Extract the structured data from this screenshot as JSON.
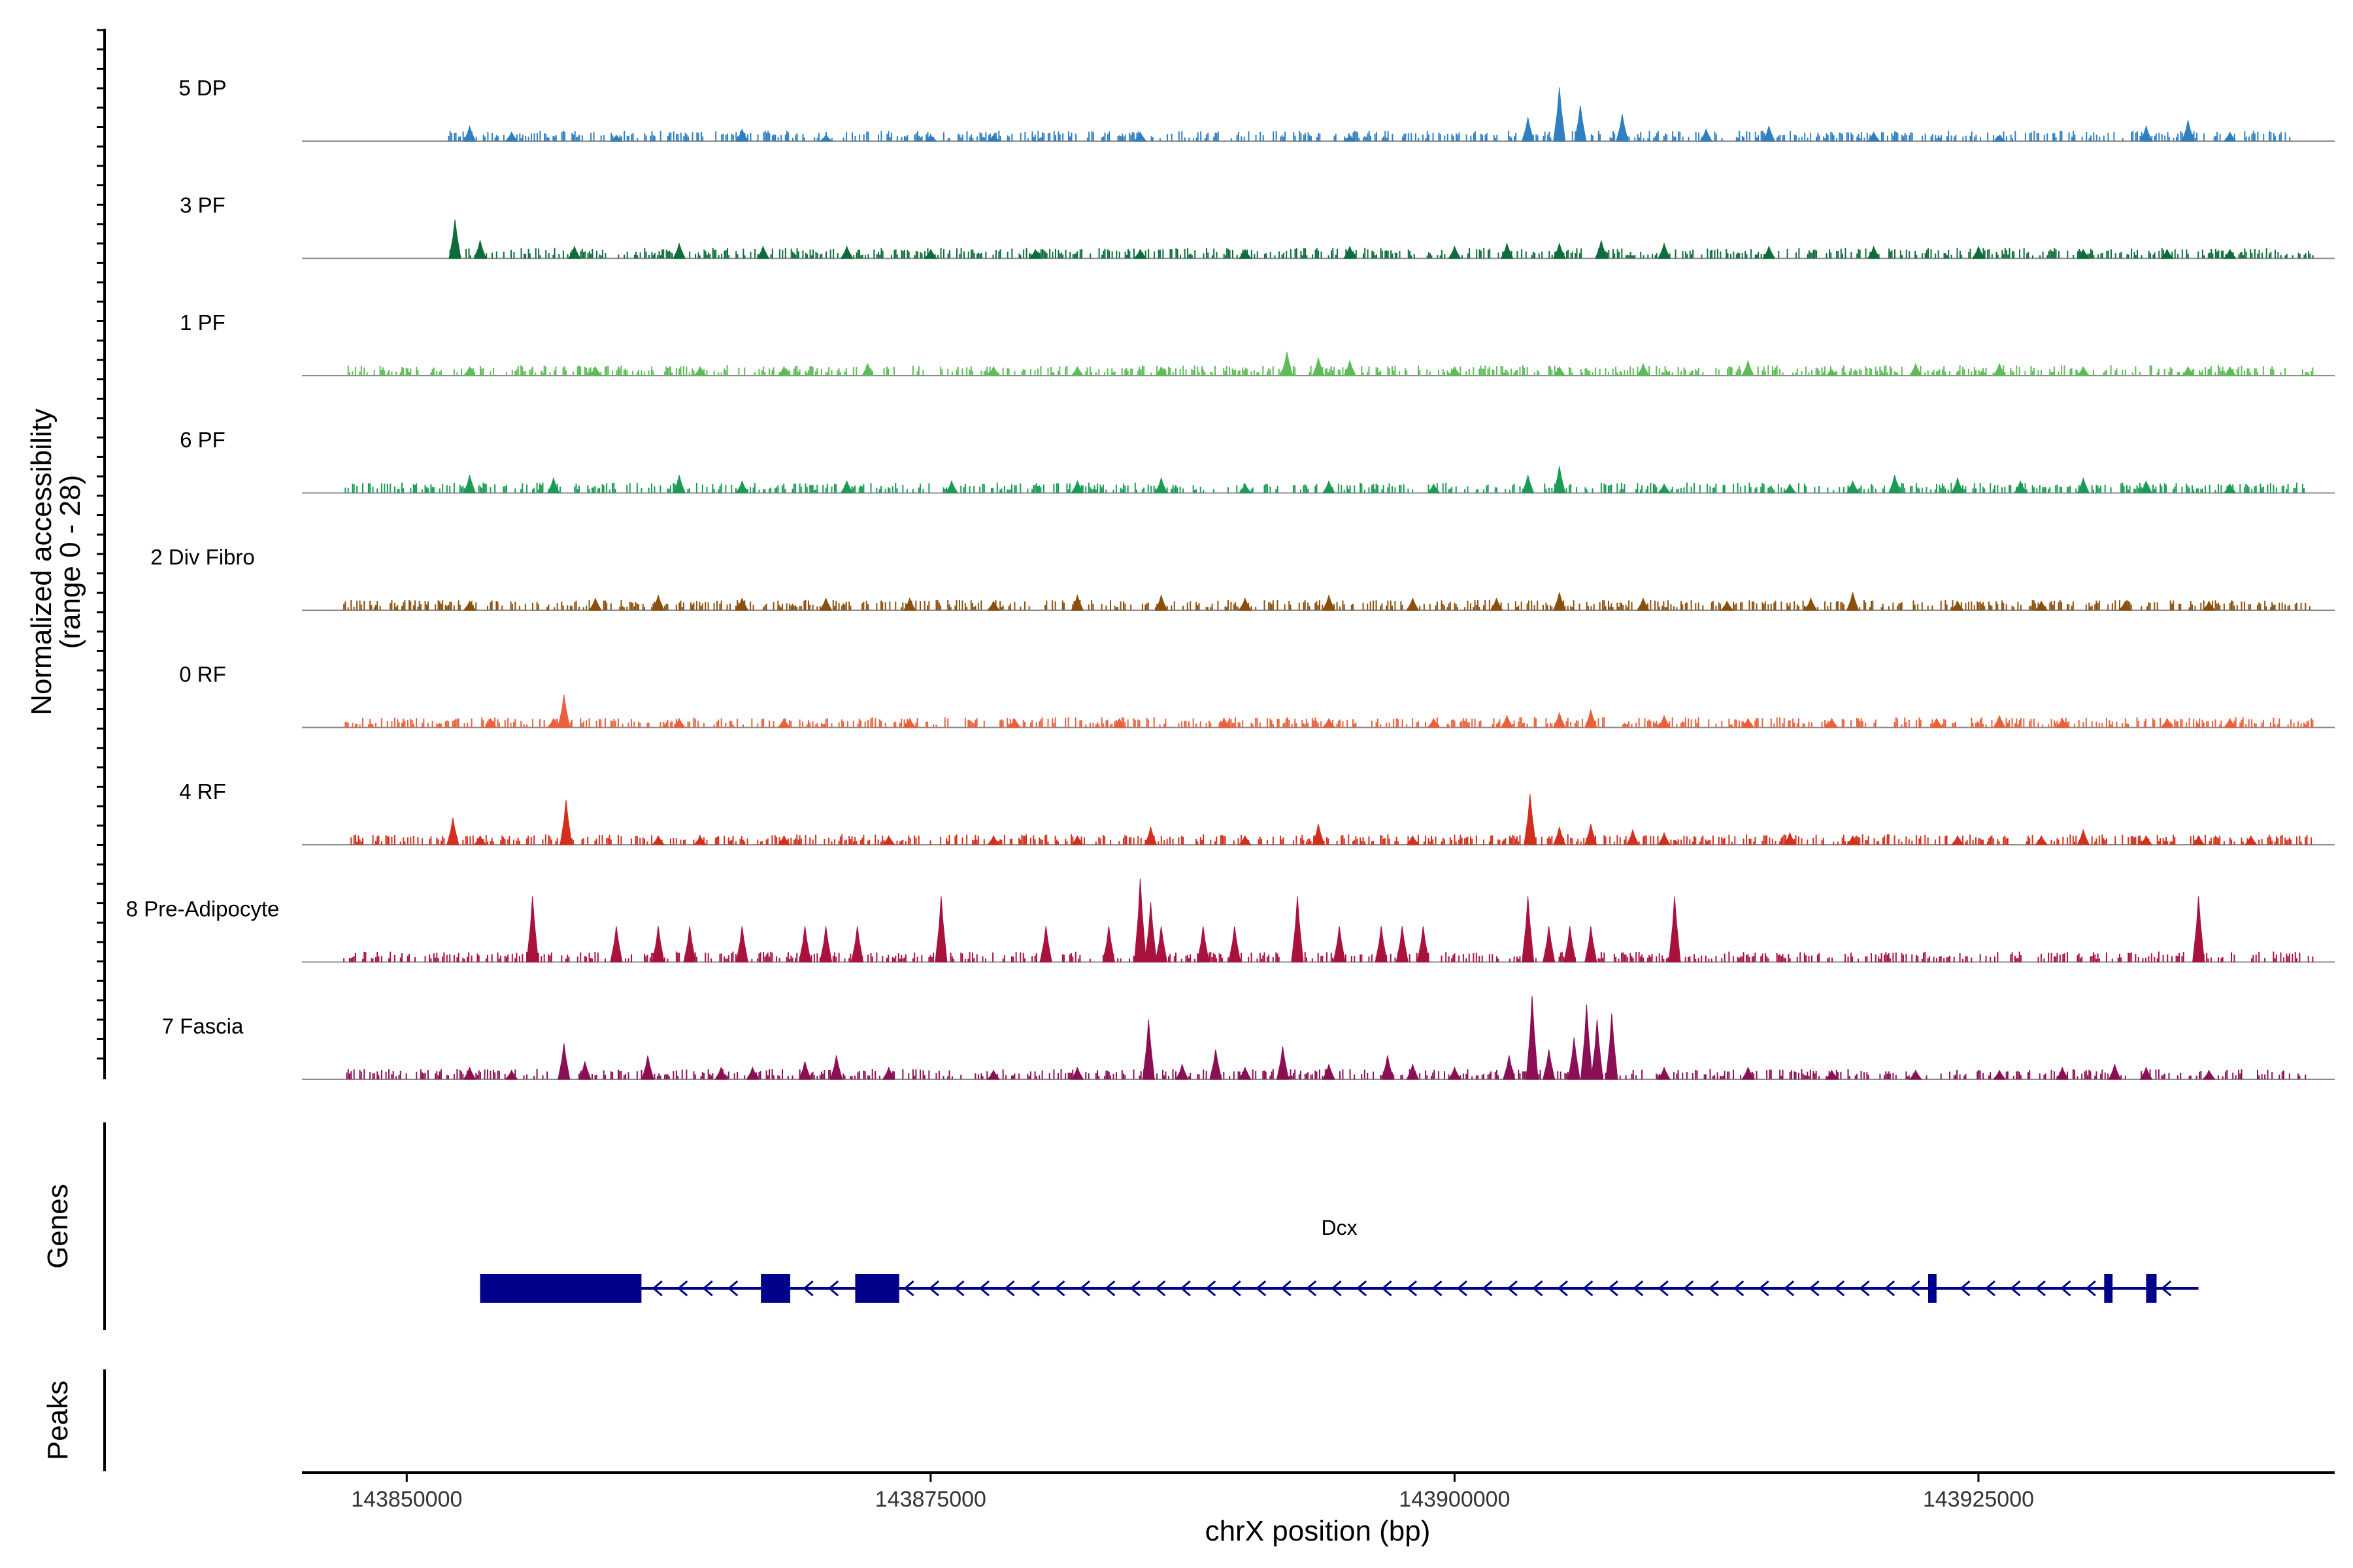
{
  "chart_data": {
    "type": "area",
    "title": "",
    "ylabel": "Normalized accessibility",
    "ylabel_sub": "(range 0 - 28)",
    "ylim": [
      0,
      28
    ],
    "xlabel": "chrX position (bp)",
    "xlim": [
      143845000,
      143942000
    ],
    "xticks": [
      143850000,
      143875000,
      143900000,
      143925000
    ],
    "xtick_labels": [
      "143850000",
      "143875000",
      "143900000",
      "143925000"
    ],
    "series": [
      {
        "name": "5 DP",
        "color": "#2F7FC1",
        "extent": [
          143852000,
          143940000
        ],
        "peaks": [
          [
            143853000,
            5
          ],
          [
            143855000,
            3
          ],
          [
            143860000,
            2
          ],
          [
            143866000,
            4
          ],
          [
            143870000,
            2
          ],
          [
            143875000,
            2
          ],
          [
            143878000,
            2
          ],
          [
            143885000,
            3
          ],
          [
            143895000,
            2
          ],
          [
            143903500,
            8
          ],
          [
            143905000,
            18
          ],
          [
            143906000,
            12
          ],
          [
            143908000,
            9
          ],
          [
            143912000,
            4
          ],
          [
            143915000,
            5
          ],
          [
            143920000,
            3
          ],
          [
            143926000,
            2
          ],
          [
            143933000,
            5
          ],
          [
            143935000,
            7
          ],
          [
            143937000,
            3
          ]
        ]
      },
      {
        "name": "3 PF",
        "color": "#0E6B3A",
        "extent": [
          143852000,
          143941000
        ],
        "peaks": [
          [
            143852300,
            13
          ],
          [
            143853500,
            6
          ],
          [
            143858000,
            4
          ],
          [
            143863000,
            5
          ],
          [
            143867000,
            4
          ],
          [
            143871000,
            4
          ],
          [
            143875000,
            3
          ],
          [
            143880000,
            3
          ],
          [
            143885000,
            3
          ],
          [
            143890000,
            3
          ],
          [
            143895000,
            4
          ],
          [
            143900000,
            4
          ],
          [
            143902500,
            5
          ],
          [
            143905000,
            5
          ],
          [
            143907000,
            6
          ],
          [
            143910000,
            5
          ],
          [
            143915000,
            4
          ],
          [
            143920000,
            4
          ],
          [
            143925000,
            4
          ],
          [
            143930000,
            3
          ],
          [
            143934000,
            3
          ],
          [
            143937000,
            3
          ]
        ]
      },
      {
        "name": "1 PF",
        "color": "#5DBB58",
        "extent": [
          143845000,
          143941000
        ],
        "peaks": [
          [
            143853000,
            3
          ],
          [
            143859000,
            3
          ],
          [
            143864000,
            3
          ],
          [
            143868000,
            3
          ],
          [
            143872000,
            4
          ],
          [
            143878000,
            3
          ],
          [
            143882000,
            3
          ],
          [
            143886000,
            3
          ],
          [
            143892000,
            8
          ],
          [
            143893500,
            6
          ],
          [
            143895000,
            5
          ],
          [
            143900000,
            3
          ],
          [
            143905000,
            3
          ],
          [
            143909000,
            4
          ],
          [
            143914000,
            5
          ],
          [
            143918000,
            2
          ],
          [
            143922000,
            4
          ],
          [
            143926000,
            4
          ],
          [
            143930000,
            3
          ],
          [
            143935000,
            3
          ],
          [
            143937000,
            3
          ]
        ]
      },
      {
        "name": "6 PF",
        "color": "#1B9B55",
        "extent": [
          143845000,
          143941000
        ],
        "peaks": [
          [
            143853000,
            6
          ],
          [
            143857000,
            5
          ],
          [
            143863000,
            6
          ],
          [
            143866000,
            4
          ],
          [
            143871000,
            4
          ],
          [
            143876000,
            4
          ],
          [
            143882000,
            4
          ],
          [
            143886000,
            5
          ],
          [
            143890000,
            3
          ],
          [
            143894000,
            4
          ],
          [
            143899000,
            3
          ],
          [
            143903500,
            6
          ],
          [
            143905000,
            9
          ],
          [
            143910000,
            3
          ],
          [
            143916000,
            3
          ],
          [
            143919000,
            4
          ],
          [
            143921000,
            6
          ],
          [
            143924000,
            5
          ],
          [
            143927000,
            4
          ],
          [
            143930000,
            5
          ],
          [
            143933000,
            4
          ],
          [
            143937000,
            3
          ]
        ]
      },
      {
        "name": "2 Div Fibro",
        "color": "#8B4F0C",
        "extent": [
          143845000,
          143941000
        ],
        "peaks": [
          [
            143853000,
            3
          ],
          [
            143859000,
            4
          ],
          [
            143862000,
            5
          ],
          [
            143866000,
            4
          ],
          [
            143870000,
            4
          ],
          [
            143874000,
            4
          ],
          [
            143878000,
            3
          ],
          [
            143882000,
            5
          ],
          [
            143886000,
            5
          ],
          [
            143890000,
            4
          ],
          [
            143894000,
            5
          ],
          [
            143898000,
            4
          ],
          [
            143902000,
            4
          ],
          [
            143905000,
            6
          ],
          [
            143909000,
            4
          ],
          [
            143913000,
            3
          ],
          [
            143917000,
            4
          ],
          [
            143919000,
            6
          ],
          [
            143924000,
            3
          ],
          [
            143928000,
            3
          ],
          [
            143932000,
            3
          ],
          [
            143936000,
            3
          ]
        ]
      },
      {
        "name": "0 RF",
        "color": "#E8603C",
        "extent": [
          143845000,
          143941000
        ],
        "peaks": [
          [
            143854000,
            3
          ],
          [
            143857000,
            3
          ],
          [
            143857500,
            11
          ],
          [
            143863000,
            3
          ],
          [
            143868000,
            3
          ],
          [
            143874000,
            3
          ],
          [
            143879000,
            3
          ],
          [
            143884000,
            3
          ],
          [
            143889000,
            3
          ],
          [
            143894000,
            3
          ],
          [
            143899000,
            3
          ],
          [
            143902500,
            4
          ],
          [
            143905000,
            5
          ],
          [
            143906500,
            6
          ],
          [
            143910000,
            4
          ],
          [
            143914000,
            3
          ],
          [
            143918000,
            3
          ],
          [
            143923000,
            3
          ],
          [
            143926000,
            4
          ],
          [
            143929000,
            3
          ],
          [
            143934000,
            3
          ],
          [
            143937000,
            3
          ]
        ]
      },
      {
        "name": "4 RF",
        "color": "#D1301F",
        "extent": [
          143845000,
          143941000
        ],
        "peaks": [
          [
            143852200,
            9
          ],
          [
            143853500,
            3
          ],
          [
            143857600,
            15
          ],
          [
            143862000,
            3
          ],
          [
            143864000,
            3
          ],
          [
            143868000,
            3
          ],
          [
            143873000,
            3
          ],
          [
            143878000,
            3
          ],
          [
            143882000,
            3
          ],
          [
            143885500,
            6
          ],
          [
            143890000,
            3
          ],
          [
            143893500,
            7
          ],
          [
            143898000,
            3
          ],
          [
            143903600,
            17
          ],
          [
            143905000,
            6
          ],
          [
            143906500,
            7
          ],
          [
            143908500,
            5
          ],
          [
            143910000,
            4
          ],
          [
            143916000,
            4
          ],
          [
            143919000,
            3
          ],
          [
            143924000,
            3
          ],
          [
            143928000,
            3
          ],
          [
            143930000,
            5
          ],
          [
            143933000,
            3
          ],
          [
            143935500,
            3
          ],
          [
            143938000,
            3
          ]
        ]
      },
      {
        "name": "8 Pre-Adipocyte",
        "color": "#A8123C",
        "extent": [
          143845000,
          143941000
        ],
        "peaks": [
          [
            143856000,
            22
          ],
          [
            143860000,
            12
          ],
          [
            143862000,
            12
          ],
          [
            143863500,
            12
          ],
          [
            143866000,
            12
          ],
          [
            143869000,
            12
          ],
          [
            143870000,
            12
          ],
          [
            143871500,
            12
          ],
          [
            143875500,
            22
          ],
          [
            143880500,
            12
          ],
          [
            143883500,
            12
          ],
          [
            143885000,
            28
          ],
          [
            143885500,
            20
          ],
          [
            143886000,
            12
          ],
          [
            143888000,
            12
          ],
          [
            143889500,
            12
          ],
          [
            143892500,
            22
          ],
          [
            143894500,
            12
          ],
          [
            143896500,
            12
          ],
          [
            143897500,
            12
          ],
          [
            143898500,
            12
          ],
          [
            143903500,
            22
          ],
          [
            143904500,
            12
          ],
          [
            143905500,
            12
          ],
          [
            143906500,
            12
          ],
          [
            143910500,
            22
          ],
          [
            143935500,
            22
          ]
        ]
      },
      {
        "name": "7 Fascia",
        "color": "#8B0F55",
        "extent": [
          143845000,
          143941000
        ],
        "peaks": [
          [
            143853000,
            4
          ],
          [
            143855000,
            3
          ],
          [
            143857500,
            12
          ],
          [
            143858500,
            6
          ],
          [
            143861500,
            8
          ],
          [
            143865000,
            4
          ],
          [
            143866500,
            4
          ],
          [
            143869000,
            6
          ],
          [
            143870500,
            8
          ],
          [
            143873000,
            4
          ],
          [
            143878000,
            3
          ],
          [
            143882000,
            4
          ],
          [
            143885400,
            20
          ],
          [
            143887000,
            5
          ],
          [
            143888600,
            10
          ],
          [
            143890000,
            4
          ],
          [
            143891800,
            11
          ],
          [
            143894000,
            5
          ],
          [
            143896800,
            8
          ],
          [
            143898000,
            5
          ],
          [
            143900000,
            4
          ],
          [
            143902600,
            8
          ],
          [
            143903700,
            28
          ],
          [
            143904500,
            10
          ],
          [
            143905700,
            14
          ],
          [
            143906300,
            25
          ],
          [
            143906800,
            20
          ],
          [
            143907500,
            22
          ],
          [
            143910000,
            4
          ],
          [
            143914000,
            4
          ],
          [
            143918000,
            3
          ],
          [
            143922000,
            3
          ],
          [
            143926000,
            3
          ],
          [
            143929000,
            4
          ],
          [
            143931500,
            5
          ],
          [
            143933000,
            4
          ],
          [
            143936000,
            3
          ]
        ]
      }
    ]
  },
  "genes_panel": {
    "title": "Genes",
    "gene_name": "Dcx",
    "color": "#00008B",
    "strand": "-",
    "span": [
      143853500,
      143935500
    ],
    "exons": [
      [
        143853500,
        143861200
      ],
      [
        143866900,
        143868300
      ],
      [
        143871400,
        143873500
      ],
      [
        143922600,
        143923000
      ],
      [
        143931000,
        143931400
      ],
      [
        143933000,
        143933500
      ]
    ]
  },
  "peaks_panel": {
    "title": "Peaks"
  }
}
